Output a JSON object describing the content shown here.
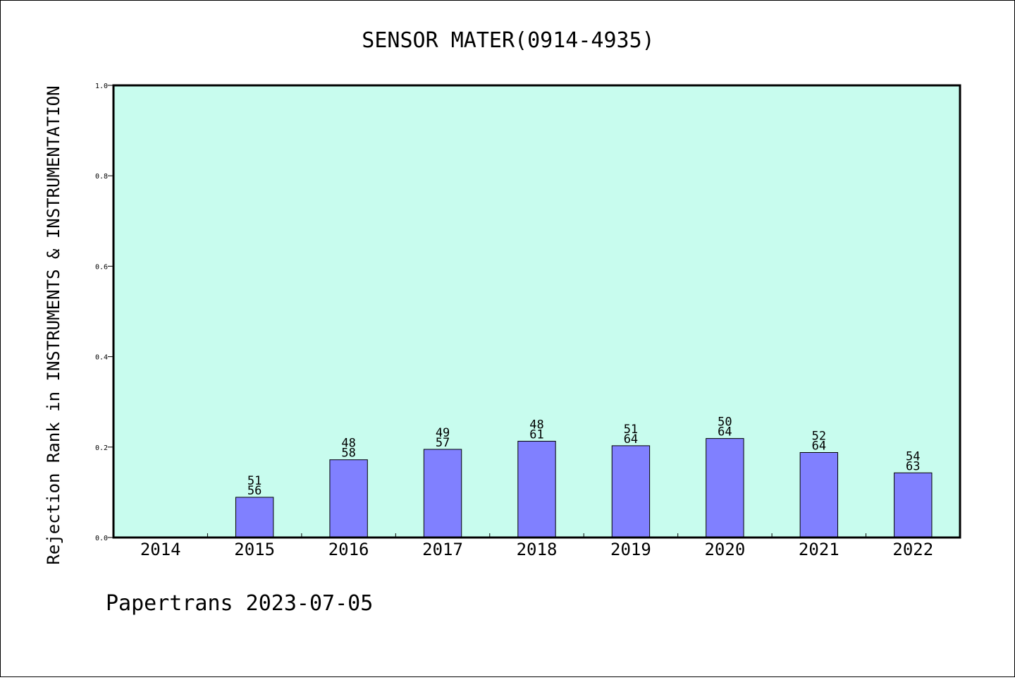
{
  "chart_data": {
    "type": "bar",
    "title": "SENSOR MATER(0914-4935)",
    "xlabel": "",
    "ylabel": "Rejection Rank in INSTRUMENTS & INSTRUMENTATION",
    "categories": [
      "2014",
      "2015",
      "2016",
      "2017",
      "2018",
      "2019",
      "2020",
      "2021",
      "2022"
    ],
    "series": [
      {
        "values": [
          null,
          0.089,
          0.172,
          0.195,
          0.213,
          0.203,
          0.219,
          0.188,
          0.143
        ],
        "labels": [
          null,
          [
            "51",
            "56"
          ],
          [
            "48",
            "58"
          ],
          [
            "49",
            "57"
          ],
          [
            "48",
            "61"
          ],
          [
            "51",
            "64"
          ],
          [
            "50",
            "64"
          ],
          [
            "52",
            "64"
          ],
          [
            "54",
            "63"
          ]
        ]
      }
    ],
    "ylim": [
      0,
      1.0
    ],
    "yticks": [
      "0.0",
      "0.2",
      "0.4",
      "0.6",
      "0.8",
      "1.0"
    ],
    "grid": false,
    "colors": {
      "plot_bg": "#c8fcee",
      "bar": "#8080ff",
      "bar_edge": "#000000"
    }
  },
  "footer": {
    "text": "Papertrans 2023-07-05"
  }
}
